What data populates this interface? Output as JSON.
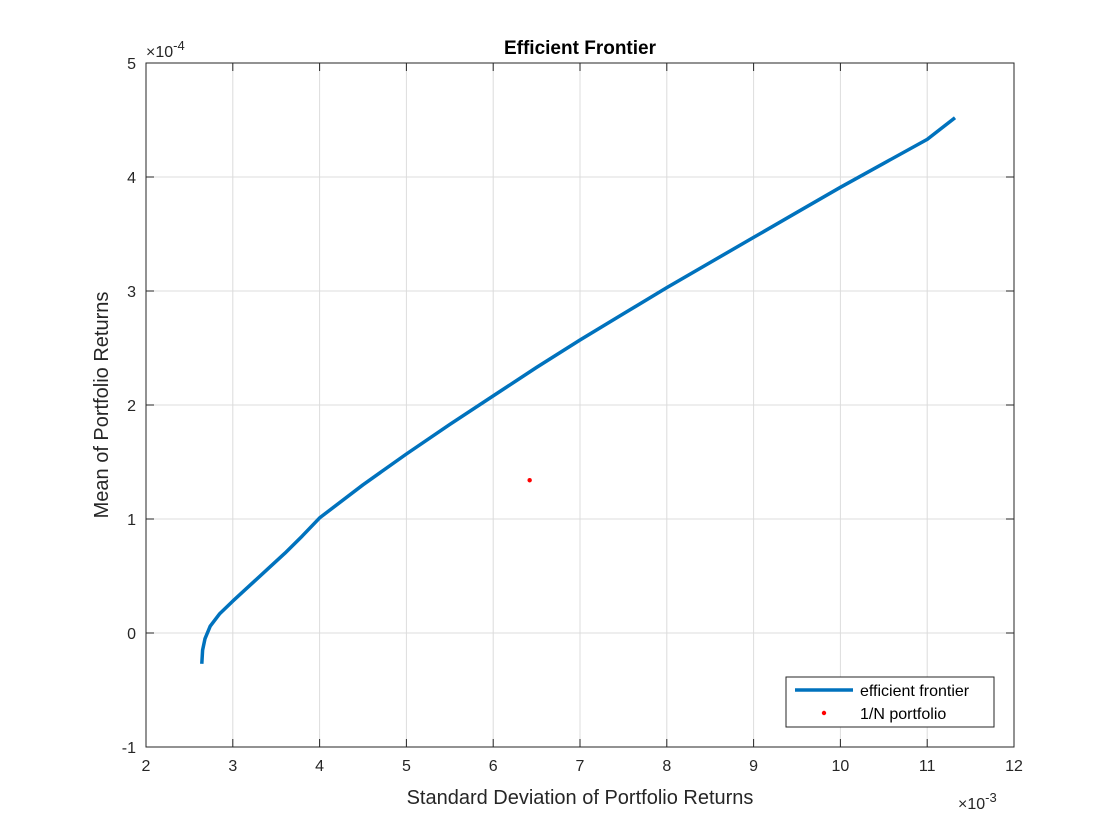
{
  "chart_data": {
    "type": "line",
    "title": "Efficient Frontier",
    "xlabel": "Standard Deviation of Portfolio Returns",
    "ylabel": "Mean of Portfolio Returns",
    "x_exponent_base": "×10",
    "x_exponent_power": "-3",
    "y_exponent_base": "×10",
    "y_exponent_power": "-4",
    "xlim": [
      2,
      12
    ],
    "ylim": [
      -1,
      5
    ],
    "xticks": [
      2,
      3,
      4,
      5,
      6,
      7,
      8,
      9,
      10,
      11,
      12
    ],
    "yticks": [
      -1,
      0,
      1,
      2,
      3,
      4,
      5
    ],
    "xtick_labels": [
      "2",
      "3",
      "4",
      "5",
      "6",
      "7",
      "8",
      "9",
      "10",
      "11",
      "12"
    ],
    "ytick_labels": [
      "-1",
      "0",
      "1",
      "2",
      "3",
      "4",
      "5"
    ],
    "grid": true,
    "legend_location": "bottom-right",
    "series": [
      {
        "name": "efficient frontier",
        "kind": "line",
        "color": "#0072BD",
        "x": [
          2.643,
          2.652,
          2.68,
          2.74,
          2.85,
          3.0,
          3.2,
          3.4,
          3.6,
          3.8,
          4.0,
          4.5,
          5.0,
          5.5,
          6.0,
          6.5,
          7.0,
          7.5,
          8.0,
          8.5,
          9.0,
          9.5,
          10.0,
          10.5,
          11.0,
          11.32
        ],
        "y": [
          -0.27,
          -0.15,
          -0.05,
          0.06,
          0.17,
          0.28,
          0.42,
          0.56,
          0.7,
          0.85,
          1.01,
          1.3,
          1.57,
          1.83,
          2.08,
          2.33,
          2.57,
          2.8,
          3.03,
          3.25,
          3.47,
          3.69,
          3.91,
          4.12,
          4.33,
          4.52
        ]
      },
      {
        "name": "1/N portfolio",
        "kind": "point",
        "color": "#FF0000",
        "x": [
          6.42
        ],
        "y": [
          1.34
        ]
      }
    ]
  }
}
